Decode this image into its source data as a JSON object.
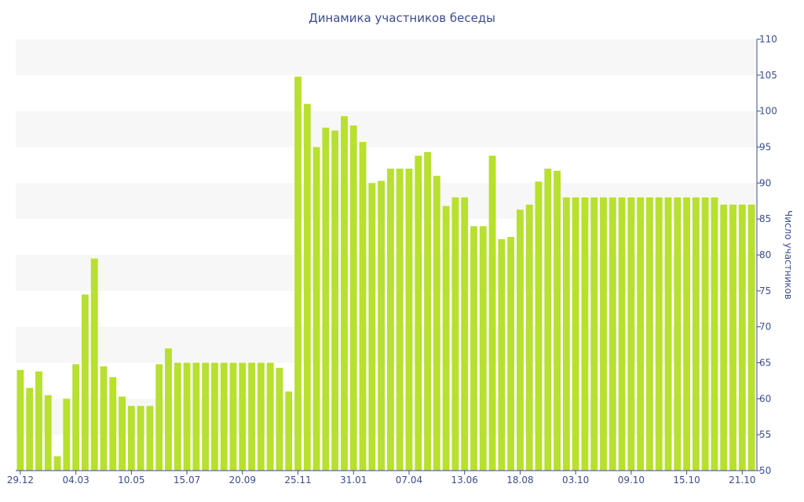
{
  "chart_data": {
    "type": "bar",
    "title": "Динамика участников беседы",
    "ylabel": "Число участников",
    "xlabel": "",
    "ylim": [
      50,
      110
    ],
    "y_ticks": [
      50,
      55,
      60,
      65,
      70,
      75,
      80,
      85,
      90,
      95,
      100,
      105,
      110
    ],
    "y_axis_side": "right",
    "grid": "alternating horizontal bands",
    "bar_color": "#b7e02f",
    "band_color": "#f7f7f7",
    "text_color": "#3b4d8c",
    "x_tick_labels": [
      {
        "label": "29.12",
        "index": 0
      },
      {
        "label": "04.03",
        "index": 6
      },
      {
        "label": "10.05",
        "index": 12
      },
      {
        "label": "15.07",
        "index": 18
      },
      {
        "label": "20.09",
        "index": 24
      },
      {
        "label": "25.11",
        "index": 30
      },
      {
        "label": "31.01",
        "index": 36
      },
      {
        "label": "07.04",
        "index": 42
      },
      {
        "label": "13.06",
        "index": 48
      },
      {
        "label": "18.08",
        "index": 54
      },
      {
        "label": "03.10",
        "index": 60
      },
      {
        "label": "09.10",
        "index": 66
      },
      {
        "label": "15.10",
        "index": 72
      },
      {
        "label": "21.10",
        "index": 78
      }
    ],
    "values": [
      64,
      61.5,
      63.8,
      60.5,
      52,
      60,
      64.8,
      74.5,
      79.5,
      64.5,
      63,
      60.3,
      59,
      59,
      59,
      64.8,
      67,
      65,
      65,
      65,
      65,
      65,
      65,
      65,
      65,
      65,
      65,
      65,
      64.3,
      61,
      104.8,
      101,
      95,
      97.7,
      97.3,
      99.3,
      98,
      95.7,
      90,
      90.3,
      92,
      92,
      92,
      93.8,
      94.3,
      91,
      86.8,
      88,
      88,
      84,
      84,
      93.8,
      82.2,
      82.5,
      86.3,
      87,
      90.2,
      92,
      91.7,
      88,
      88,
      88,
      88,
      88,
      88,
      88,
      88,
      88,
      88,
      88,
      88,
      88,
      88,
      88,
      88,
      88,
      87,
      87,
      87,
      87
    ]
  }
}
